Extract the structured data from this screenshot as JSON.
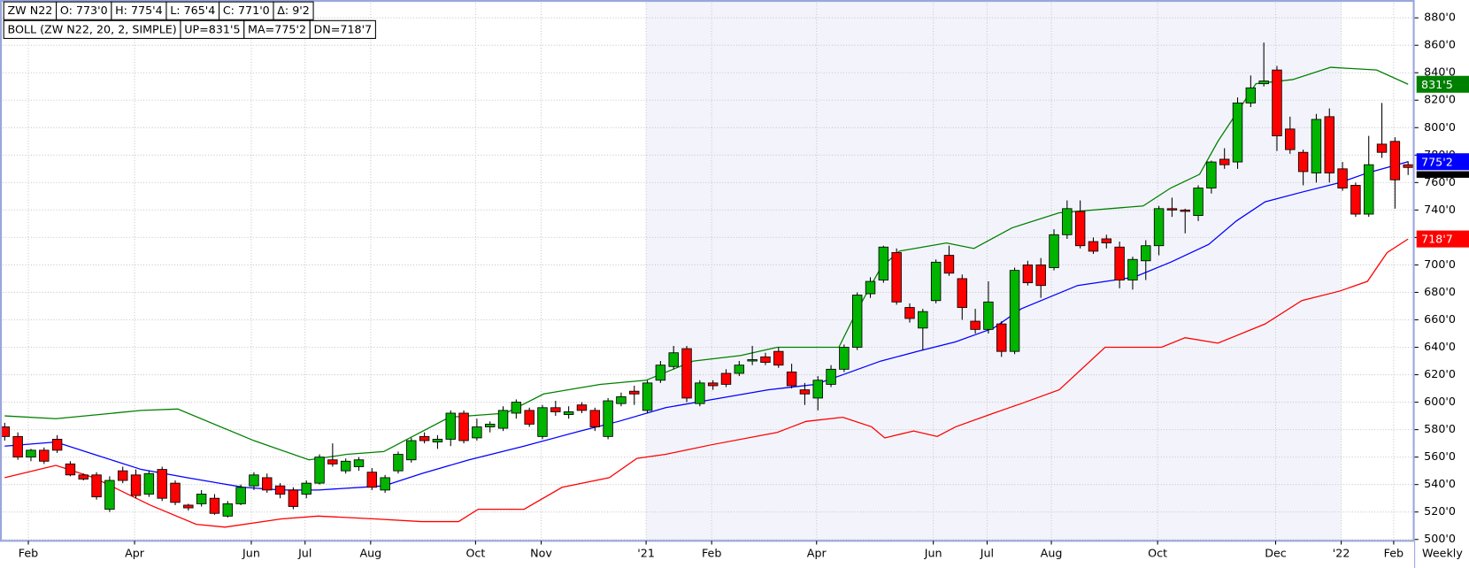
{
  "chart_data": {
    "type": "candlestick",
    "header": [
      "ZW N22",
      "O: 773'0",
      "H: 775'4",
      "L: 765'4",
      "C: 771'0",
      "Δ: 9'2"
    ],
    "indicator": [
      "BOLL (ZW N22, 20, 2, SIMPLE)",
      "UP=831'5",
      "MA=775'2",
      "DN=718'7"
    ],
    "timeframe": "Weekly",
    "up_color": "#00b400",
    "down_color": "#ff0000",
    "open": [
      582,
      575,
      560,
      565,
      573,
      555,
      547,
      547,
      522,
      550,
      547,
      533,
      551,
      541,
      525,
      526,
      530,
      517,
      526,
      539,
      545,
      539,
      536,
      533,
      541,
      558,
      550,
      553,
      549,
      536,
      550,
      558,
      575,
      571,
      573,
      592,
      574,
      582,
      581,
      592,
      594,
      575,
      596,
      591,
      598,
      594,
      575,
      599,
      608,
      594,
      616,
      626,
      639,
      599,
      614,
      621,
      621,
      630,
      633,
      637,
      622,
      609,
      603,
      613,
      624,
      640,
      679,
      689,
      709,
      669,
      654,
      674,
      707,
      690,
      659,
      653,
      657,
      637,
      700,
      700,
      698,
      722,
      739,
      717,
      719,
      713,
      689,
      703,
      714,
      741,
      740,
      736,
      756,
      777,
      775,
      818,
      832,
      842,
      799,
      782,
      767,
      808,
      770,
      758,
      737,
      788,
      790,
      773
    ],
    "high": [
      585,
      578,
      566,
      567,
      576,
      557,
      548,
      549,
      546,
      553,
      551,
      550,
      553,
      543,
      526,
      536,
      533,
      528,
      540,
      549,
      548,
      541,
      538,
      543,
      562,
      570,
      559,
      560,
      552,
      547,
      564,
      574,
      578,
      576,
      594,
      594,
      588,
      586,
      597,
      602,
      596,
      598,
      601,
      597,
      600,
      596,
      603,
      607,
      612,
      616,
      630,
      641,
      641,
      616,
      616,
      624,
      630,
      641,
      636,
      640,
      628,
      614,
      619,
      627,
      642,
      680,
      691,
      714,
      712,
      672,
      668,
      704,
      714,
      693,
      668,
      688,
      659,
      698,
      703,
      705,
      726,
      747,
      747,
      720,
      722,
      717,
      706,
      718,
      743,
      749,
      741,
      758,
      776,
      785,
      822,
      838,
      862,
      845,
      808,
      784,
      810,
      814,
      775,
      760,
      794,
      818,
      793,
      775.5
    ],
    "low": [
      572,
      558,
      557,
      555,
      563,
      546,
      543,
      529,
      520,
      541,
      530,
      531,
      528,
      525,
      521,
      524,
      518,
      516,
      525,
      536,
      534,
      530,
      522,
      530,
      540,
      553,
      548,
      550,
      536,
      534,
      548,
      556,
      570,
      566,
      568,
      570,
      572,
      578,
      579,
      588,
      582,
      573,
      590,
      588,
      592,
      579,
      573,
      597,
      598,
      592,
      614,
      624,
      600,
      597,
      609,
      611,
      619,
      627,
      627,
      625,
      610,
      598,
      594,
      611,
      622,
      638,
      676,
      687,
      671,
      658,
      638,
      672,
      692,
      660,
      650,
      650,
      633,
      635,
      685,
      676,
      696,
      719,
      712,
      708,
      712,
      683,
      682,
      689,
      707,
      735,
      723,
      732,
      752,
      770,
      770,
      815,
      830,
      783,
      781,
      758,
      760,
      760,
      754,
      735,
      735,
      778,
      741,
      765.5
    ],
    "close": [
      575,
      560,
      565,
      557,
      565,
      547,
      544,
      531,
      543,
      543,
      532,
      548,
      530,
      527,
      523,
      533,
      519,
      526,
      538,
      547,
      536,
      533,
      524,
      541,
      560,
      555,
      557,
      558,
      538,
      545,
      562,
      572,
      572,
      573,
      592,
      572,
      582,
      584,
      594,
      600,
      584,
      596,
      593,
      593,
      594,
      582,
      601,
      604,
      606,
      614,
      627,
      636,
      603,
      614,
      612,
      613,
      627,
      631,
      629,
      627,
      612,
      606,
      616,
      624,
      640,
      678,
      688,
      713,
      673,
      661,
      666,
      702,
      694,
      669,
      653,
      673,
      637,
      696,
      687,
      685,
      722,
      741,
      714,
      710,
      716,
      689,
      704,
      714,
      741,
      740,
      739,
      756,
      775,
      773,
      818,
      829,
      834,
      794,
      784,
      768,
      806,
      767,
      756,
      737,
      773,
      782,
      762,
      771
    ],
    "bands": [
      {
        "color": "#008000",
        "last_label": "831'5",
        "x": [
          0,
          3.9,
          10.4,
          13.2,
          19,
          23.2,
          26.1,
          28.9,
          31.1,
          33.9,
          38.2,
          41.1,
          45.4,
          48.9,
          52.5,
          56.1,
          58.9,
          63.6,
          65,
          66.8,
          68.2,
          71.8,
          73.9,
          76.8,
          80.4,
          86.8,
          88.9,
          91.1,
          92.5,
          95.4,
          98.2,
          101.1,
          104.6,
          107
        ],
        "values": [
          590,
          588,
          594,
          595,
          572,
          558,
          562,
          564,
          575,
          589,
          592,
          606,
          613,
          616,
          630,
          634,
          640,
          640,
          667,
          698,
          710,
          716,
          712,
          727,
          738,
          743,
          756,
          766,
          790,
          832,
          835,
          844,
          842,
          831.6
        ]
      },
      {
        "color": "#0000ff",
        "last_label": "775'2",
        "x": [
          0,
          3.9,
          6.8,
          10.4,
          13.9,
          18.2,
          21.1,
          23.9,
          28.9,
          31.8,
          35.4,
          39.6,
          43.9,
          46.8,
          50.4,
          54.6,
          58.2,
          61.8,
          63.9,
          66.8,
          69.6,
          72.5,
          75.4,
          77.5,
          81.8,
          86.1,
          88.9,
          91.8,
          93.9,
          96.1,
          98.9,
          101.8,
          103.9,
          107
        ],
        "values": [
          568,
          571,
          562,
          551,
          545,
          538,
          536,
          536,
          539,
          548,
          558,
          568,
          579,
          586,
          596,
          603,
          609,
          613,
          620,
          630,
          637,
          644,
          654,
          668,
          685,
          691,
          702,
          715,
          732,
          746,
          753,
          760,
          767,
          775.2
        ]
      },
      {
        "color": "#ff0000",
        "last_label": "718'7",
        "x": [
          0,
          3.9,
          6.8,
          11.1,
          14.6,
          16.8,
          21.1,
          23.9,
          28.2,
          31.8,
          34.6,
          36.1,
          39.6,
          42.5,
          46.1,
          48.2,
          50.4,
          53.9,
          58.9,
          61.1,
          63.9,
          66.1,
          67.1,
          69.3,
          71.1,
          72.5,
          75.4,
          77.5,
          80.4,
          83.9,
          88.2,
          90,
          92.5,
          96.1,
          98.9,
          101.8,
          103.9,
          105.4,
          107
        ],
        "values": [
          545,
          554,
          545,
          525,
          511,
          509,
          515,
          517,
          515,
          513,
          513,
          522,
          522,
          538,
          545,
          559,
          562,
          569,
          578,
          586,
          589,
          582,
          574,
          579,
          575,
          582,
          592,
          599,
          609,
          640,
          640,
          647,
          643,
          657,
          674,
          681,
          688,
          709,
          718.9
        ]
      }
    ],
    "xlim": [
      -0.36,
      107.5
    ],
    "xticks": [
      {
        "value": 1.8,
        "label": "Feb"
      },
      {
        "value": 9.9,
        "label": "Apr"
      },
      {
        "value": 18.8,
        "label": "Jun"
      },
      {
        "value": 22.9,
        "label": "Jul"
      },
      {
        "value": 27.9,
        "label": "Aug"
      },
      {
        "value": 35.9,
        "label": "Oct"
      },
      {
        "value": 40.9,
        "label": "Nov"
      },
      {
        "value": 48.9,
        "label": "'21"
      },
      {
        "value": 53.9,
        "label": "Feb"
      },
      {
        "value": 61.9,
        "label": "Apr"
      },
      {
        "value": 70.8,
        "label": "Jun"
      },
      {
        "value": 74.9,
        "label": "Jul"
      },
      {
        "value": 79.8,
        "label": "Aug"
      },
      {
        "value": 87.9,
        "label": "Oct"
      },
      {
        "value": 96.9,
        "label": "Dec"
      },
      {
        "value": 101.9,
        "label": "'22"
      },
      {
        "value": 105.9,
        "label": "Feb"
      }
    ],
    "ylim": [
      499,
      893
    ],
    "yticks": [
      {
        "value": 500,
        "label": "500'0"
      },
      {
        "value": 520,
        "label": "520'0"
      },
      {
        "value": 540,
        "label": "540'0"
      },
      {
        "value": 560,
        "label": "560'0"
      },
      {
        "value": 580,
        "label": "580'0"
      },
      {
        "value": 600,
        "label": "600'0"
      },
      {
        "value": 620,
        "label": "620'0"
      },
      {
        "value": 640,
        "label": "640'0"
      },
      {
        "value": 660,
        "label": "660'0"
      },
      {
        "value": 680,
        "label": "680'0"
      },
      {
        "value": 700,
        "label": "700'0"
      },
      {
        "value": 720,
        "label": "720'0"
      },
      {
        "value": 740,
        "label": "740'0"
      },
      {
        "value": 760,
        "label": "760'0"
      },
      {
        "value": 780,
        "label": "780'0"
      },
      {
        "value": 800,
        "label": "800'0"
      },
      {
        "value": 820,
        "label": "820'0"
      },
      {
        "value": 840,
        "label": "840'0"
      },
      {
        "value": 860,
        "label": "860'0"
      },
      {
        "value": 880,
        "label": "880'0"
      }
    ],
    "grid": true
  }
}
